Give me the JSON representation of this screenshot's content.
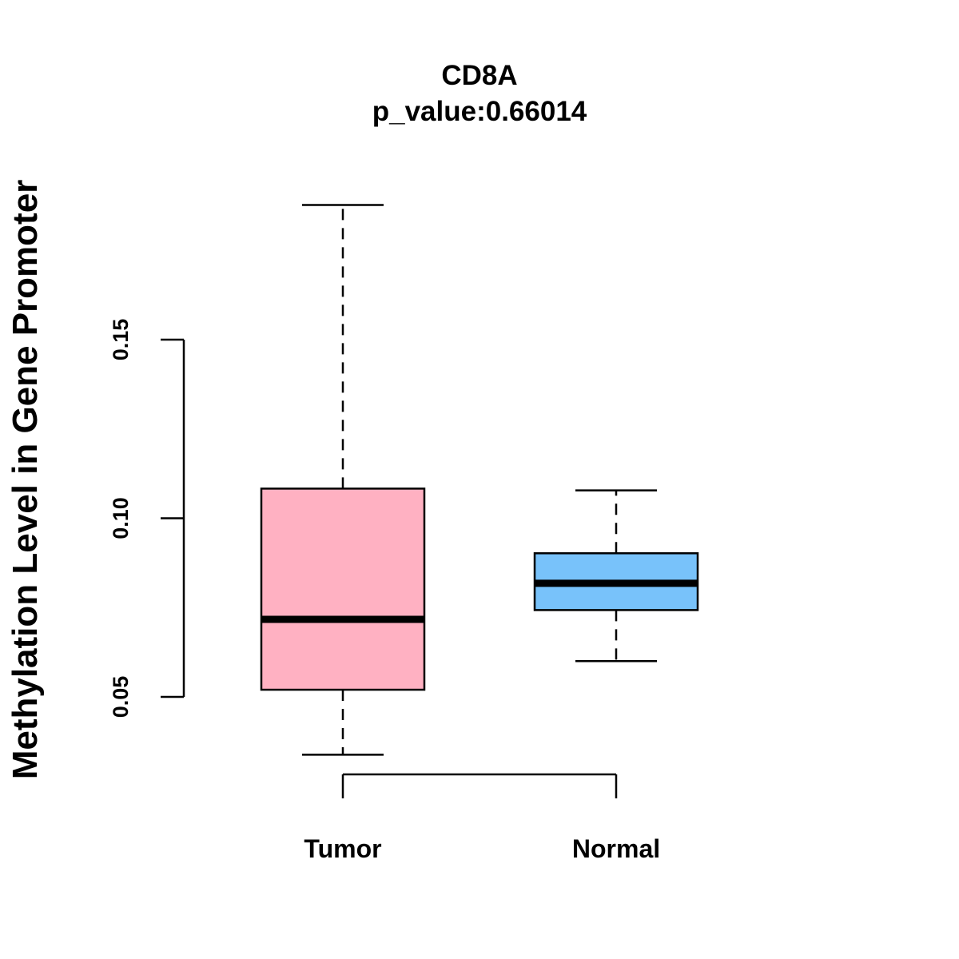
{
  "chart_data": {
    "type": "boxplot",
    "title": "CD8A",
    "subtitle": "p_value:0.66014",
    "xlabel": "",
    "ylabel": "Methylation Level in Gene Promoter",
    "y_ticks": [
      0.05,
      0.1,
      0.15
    ],
    "y_tick_labels": [
      "0.05",
      "0.10",
      "0.15"
    ],
    "categories": [
      "Tumor",
      "Normal"
    ],
    "series": [
      {
        "name": "Tumor",
        "color": "#FFB1C2",
        "whisker_low": 0.0338,
        "q1": 0.052,
        "median": 0.0717,
        "q3": 0.1083,
        "whisker_high": 0.1877
      },
      {
        "name": "Normal",
        "color": "#78C2FA",
        "whisker_low": 0.06,
        "q1": 0.0743,
        "median": 0.0818,
        "q3": 0.0902,
        "whisker_high": 0.1078
      }
    ],
    "grid": false,
    "legend": "none"
  }
}
